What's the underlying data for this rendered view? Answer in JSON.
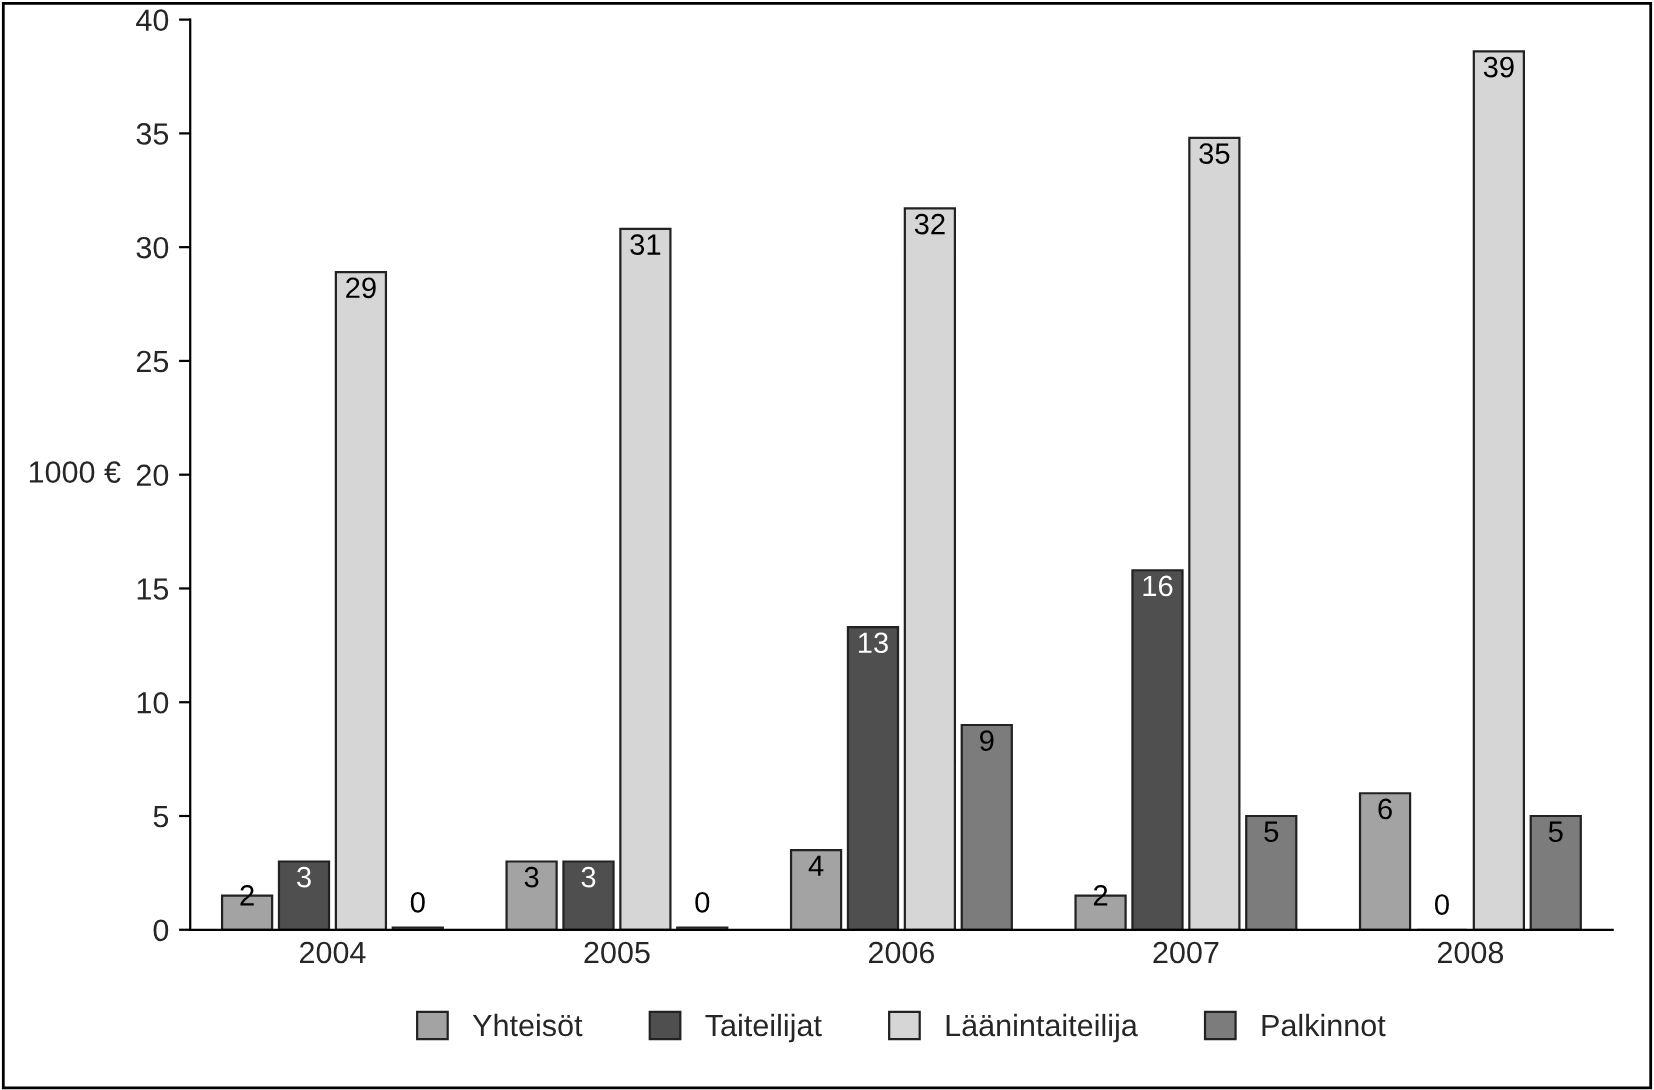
{
  "chart_data": {
    "type": "bar",
    "ylabel": "1000 €",
    "categories": [
      "2004",
      "2005",
      "2006",
      "2007",
      "2008"
    ],
    "series": [
      {
        "name": "Yhteisöt",
        "color": "#a3a3a3",
        "values": [
          1.5,
          3,
          3.5,
          1.5,
          6
        ],
        "value_labels": [
          "2",
          "3",
          "4",
          "2",
          "6"
        ]
      },
      {
        "name": "Taiteilijat",
        "color": "#4f4f4f",
        "values": [
          3,
          3,
          13.3,
          15.8,
          0
        ],
        "value_labels": [
          "3",
          "3",
          "13",
          "16",
          "0"
        ]
      },
      {
        "name": "Läänintaiteilija",
        "color": "#d6d6d6",
        "values": [
          28.9,
          30.8,
          31.7,
          34.8,
          38.6
        ],
        "value_labels": [
          "29",
          "31",
          "32",
          "35",
          "39"
        ]
      },
      {
        "name": "Palkinnot",
        "color": "#7c7c7c",
        "values": [
          0.1,
          0.1,
          9,
          5,
          5
        ],
        "value_labels": [
          "0",
          "0",
          "9",
          "5",
          "5"
        ]
      }
    ],
    "ylim": [
      0,
      40
    ],
    "yticks": [
      0,
      5,
      10,
      15,
      20,
      25,
      30,
      35,
      40
    ],
    "grid": false,
    "legend": "bottom"
  }
}
